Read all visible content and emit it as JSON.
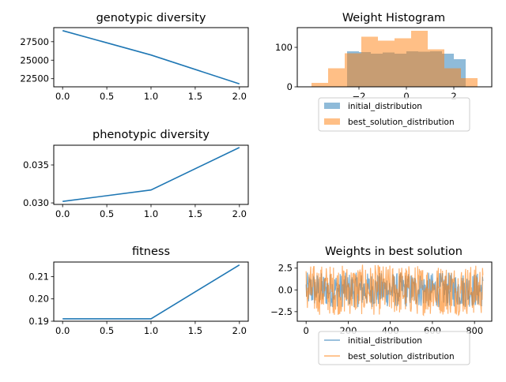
{
  "colors": {
    "blue": "#1f77b4",
    "orange": "#ff7f0e",
    "axis": "#000000"
  },
  "chart_data": [
    {
      "id": "genotypic",
      "type": "line",
      "title": "genotypic diversity",
      "x": [
        0,
        1,
        2
      ],
      "series": [
        {
          "values": [
            29000,
            25700,
            21800
          ]
        }
      ],
      "xlim": [
        -0.1,
        2.1
      ],
      "ylim": [
        21400,
        29400
      ],
      "xticks": [
        0,
        0.5,
        1,
        1.5,
        2
      ],
      "xtick_labels": [
        "0.0",
        "0.5",
        "1.0",
        "1.5",
        "2.0"
      ],
      "yticks": [
        22500,
        25000,
        27500
      ],
      "ytick_labels": [
        "22500",
        "25000",
        "27500"
      ],
      "grid": false
    },
    {
      "id": "phenotypic",
      "type": "line",
      "title": "phenotypic diversity",
      "x": [
        0,
        1,
        2
      ],
      "series": [
        {
          "values": [
            0.0302,
            0.0317,
            0.0373
          ]
        }
      ],
      "xlim": [
        -0.1,
        2.1
      ],
      "ylim": [
        0.0298,
        0.0376
      ],
      "xticks": [
        0,
        0.5,
        1,
        1.5,
        2
      ],
      "xtick_labels": [
        "0.0",
        "0.5",
        "1.0",
        "1.5",
        "2.0"
      ],
      "yticks": [
        0.03,
        0.035
      ],
      "ytick_labels": [
        "0.030",
        "0.035"
      ],
      "grid": false
    },
    {
      "id": "fitness",
      "type": "line",
      "title": "fitness",
      "x": [
        0,
        1,
        2
      ],
      "series": [
        {
          "values": [
            0.1911,
            0.1911,
            0.2152
          ]
        }
      ],
      "xlim": [
        -0.1,
        2.1
      ],
      "ylim": [
        0.19,
        0.2165
      ],
      "xticks": [
        0,
        0.5,
        1,
        1.5,
        2
      ],
      "xtick_labels": [
        "0.0",
        "0.5",
        "1.0",
        "1.5",
        "2.0"
      ],
      "yticks": [
        0.19,
        0.2,
        0.21
      ],
      "ytick_labels": [
        "0.19",
        "0.20",
        "0.21"
      ],
      "grid": false
    },
    {
      "id": "histogram",
      "type": "bar",
      "title": "Weight Histogram",
      "xlim": [
        -4.6,
        3.6
      ],
      "ylim": [
        0,
        150
      ],
      "xticks": [
        -2,
        0,
        2
      ],
      "xtick_labels": [
        "−2",
        "0",
        "2"
      ],
      "yticks": [
        0,
        100
      ],
      "ytick_labels": [
        "0",
        "100"
      ],
      "legend": {
        "placement": "below",
        "entries": [
          "initial_distribution",
          "best_solution_distribution"
        ]
      },
      "series": [
        {
          "name": "initial_distribution",
          "bins": [
            [
              -2.5,
              -2.0
            ],
            [
              -2.0,
              -1.5
            ],
            [
              -1.5,
              -1.0
            ],
            [
              -1.0,
              -0.5
            ],
            [
              -0.5,
              0.0
            ],
            [
              0.0,
              0.5
            ],
            [
              0.5,
              1.0
            ],
            [
              1.0,
              1.5
            ],
            [
              1.5,
              2.0
            ],
            [
              2.0,
              2.5
            ]
          ],
          "values": [
            90,
            88,
            84,
            87,
            84,
            90,
            89,
            90,
            84,
            70
          ]
        },
        {
          "name": "best_solution_distribution",
          "bins": [
            [
              -4.0,
              -3.3
            ],
            [
              -3.3,
              -2.6
            ],
            [
              -2.6,
              -1.9
            ],
            [
              -1.9,
              -1.2
            ],
            [
              -1.2,
              -0.5
            ],
            [
              -0.5,
              0.2
            ],
            [
              0.2,
              0.9
            ],
            [
              0.9,
              1.6
            ],
            [
              1.6,
              2.3
            ],
            [
              2.3,
              3.0
            ]
          ],
          "values": [
            10,
            47,
            85,
            127,
            117,
            123,
            142,
            95,
            47,
            22
          ]
        }
      ]
    },
    {
      "id": "weights",
      "type": "line",
      "title": "Weights in best solution",
      "x_range": [
        0,
        840
      ],
      "xlim": [
        -42,
        882
      ],
      "ylim": [
        -3.6,
        3.2
      ],
      "xticks": [
        0,
        200,
        400,
        600,
        800
      ],
      "xtick_labels": [
        "0",
        "200",
        "400",
        "600",
        "800"
      ],
      "yticks": [
        -2.5,
        0.0,
        2.5
      ],
      "ytick_labels": [
        "−2.5",
        "0.0",
        "2.5"
      ],
      "legend": {
        "placement": "below",
        "entries": [
          "initial_distribution",
          "best_solution_distribution"
        ]
      },
      "series": [
        {
          "name": "initial_distribution",
          "amplitude": 2.0
        },
        {
          "name": "best_solution_distribution",
          "amplitude": 2.9
        }
      ]
    }
  ]
}
